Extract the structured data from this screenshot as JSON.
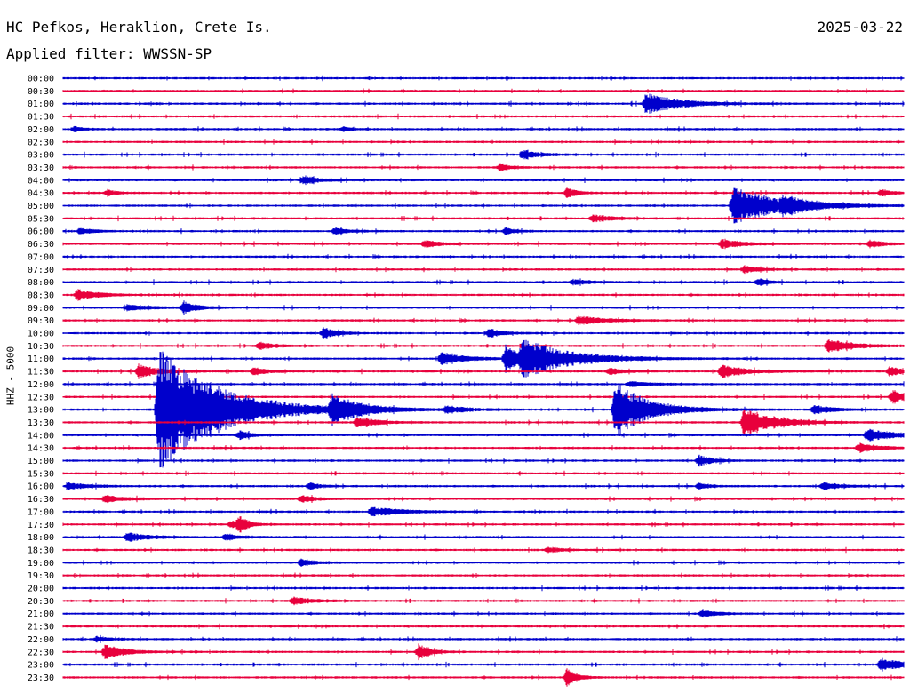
{
  "header": {
    "station": "HC Pefkos, Heraklion, Crete Is.",
    "filter": "Applied filter: WWSSN-SP",
    "date": "2025-03-22"
  },
  "chart_data": {
    "type": "line",
    "title": "HC Pefkos, Heraklion, Crete Is.",
    "subtitle": "Applied filter: WWSSN-SP",
    "ylabel": "HHZ - 5000",
    "row_labels": [
      "00:00",
      "00:30",
      "01:00",
      "01:30",
      "02:00",
      "02:30",
      "03:00",
      "03:30",
      "04:00",
      "04:30",
      "05:00",
      "05:30",
      "06:00",
      "06:30",
      "07:00",
      "07:30",
      "08:00",
      "08:30",
      "09:00",
      "09:30",
      "10:00",
      "10:30",
      "11:00",
      "11:30",
      "12:00",
      "12:30",
      "13:00",
      "13:30",
      "14:00",
      "14:30",
      "15:00",
      "15:30",
      "16:00",
      "16:30",
      "17:00",
      "17:30",
      "18:00",
      "18:30",
      "19:00",
      "19:30",
      "20:00",
      "20:30",
      "21:00",
      "21:30",
      "22:00",
      "22:30",
      "23:00",
      "23:30"
    ],
    "row_colors": [
      "#0000cc",
      "#e8003c"
    ],
    "row_span_minutes": 30,
    "grid": false,
    "events": [
      {
        "row": 2,
        "minute": 20.8,
        "amp": 12,
        "dur": 2.5
      },
      {
        "row": 4,
        "minute": 0.4,
        "amp": 3,
        "dur": 0.6
      },
      {
        "row": 4,
        "minute": 10.0,
        "amp": 3,
        "dur": 0.6
      },
      {
        "row": 6,
        "minute": 16.4,
        "amp": 5,
        "dur": 1.2
      },
      {
        "row": 7,
        "minute": 15.6,
        "amp": 4,
        "dur": 0.8
      },
      {
        "row": 8,
        "minute": 8.6,
        "amp": 5,
        "dur": 1.2
      },
      {
        "row": 9,
        "minute": 1.6,
        "amp": 4,
        "dur": 0.6
      },
      {
        "row": 9,
        "minute": 18.0,
        "amp": 6,
        "dur": 0.7
      },
      {
        "row": 9,
        "minute": 29.2,
        "amp": 4,
        "dur": 0.8
      },
      {
        "row": 10,
        "minute": 23.9,
        "amp": 22,
        "dur": 3.5
      },
      {
        "row": 10,
        "minute": 25.7,
        "amp": 8,
        "dur": 1.5
      },
      {
        "row": 11,
        "minute": 18.9,
        "amp": 4,
        "dur": 1.5
      },
      {
        "row": 12,
        "minute": 0.6,
        "amp": 3,
        "dur": 1.0
      },
      {
        "row": 12,
        "minute": 9.7,
        "amp": 4,
        "dur": 1.0
      },
      {
        "row": 12,
        "minute": 15.8,
        "amp": 4,
        "dur": 0.7
      },
      {
        "row": 13,
        "minute": 12.9,
        "amp": 4,
        "dur": 1.2
      },
      {
        "row": 13,
        "minute": 23.5,
        "amp": 5,
        "dur": 1.5
      },
      {
        "row": 13,
        "minute": 28.8,
        "amp": 4,
        "dur": 1.0
      },
      {
        "row": 15,
        "minute": 24.3,
        "amp": 4,
        "dur": 1.2
      },
      {
        "row": 16,
        "minute": 18.2,
        "amp": 3,
        "dur": 1.2
      },
      {
        "row": 16,
        "minute": 24.8,
        "amp": 4,
        "dur": 0.8
      },
      {
        "row": 17,
        "minute": 0.5,
        "amp": 6,
        "dur": 1.5
      },
      {
        "row": 18,
        "minute": 2.3,
        "amp": 4,
        "dur": 1.5
      },
      {
        "row": 18,
        "minute": 4.3,
        "amp": 7,
        "dur": 1.0
      },
      {
        "row": 19,
        "minute": 18.4,
        "amp": 5,
        "dur": 2.0
      },
      {
        "row": 20,
        "minute": 9.3,
        "amp": 6,
        "dur": 1.0
      },
      {
        "row": 20,
        "minute": 15.2,
        "amp": 5,
        "dur": 1.0
      },
      {
        "row": 21,
        "minute": 7.0,
        "amp": 4,
        "dur": 1.2
      },
      {
        "row": 21,
        "minute": 27.3,
        "amp": 7,
        "dur": 2.0
      },
      {
        "row": 22,
        "minute": 13.5,
        "amp": 7,
        "dur": 1.8
      },
      {
        "row": 22,
        "minute": 15.8,
        "amp": 18,
        "dur": 0.8
      },
      {
        "row": 22,
        "minute": 16.4,
        "amp": 22,
        "dur": 3.5
      },
      {
        "row": 23,
        "minute": 2.7,
        "amp": 9,
        "dur": 1.5
      },
      {
        "row": 23,
        "minute": 6.8,
        "amp": 4,
        "dur": 1.2
      },
      {
        "row": 23,
        "minute": 19.5,
        "amp": 4,
        "dur": 1.0
      },
      {
        "row": 23,
        "minute": 23.5,
        "amp": 7,
        "dur": 2.0
      },
      {
        "row": 23,
        "minute": 29.5,
        "amp": 5,
        "dur": 1.0
      },
      {
        "row": 24,
        "minute": 20.2,
        "amp": 3,
        "dur": 1.5
      },
      {
        "row": 25,
        "minute": 29.6,
        "amp": 8,
        "dur": 1.0
      },
      {
        "row": 26,
        "minute": 3.4,
        "amp": 70,
        "dur": 4.5
      },
      {
        "row": 26,
        "minute": 5.2,
        "amp": 5,
        "dur": 1.0
      },
      {
        "row": 26,
        "minute": 9.6,
        "amp": 16,
        "dur": 2.0
      },
      {
        "row": 26,
        "minute": 13.7,
        "amp": 4,
        "dur": 1.5
      },
      {
        "row": 26,
        "minute": 19.7,
        "amp": 32,
        "dur": 2.5
      },
      {
        "row": 26,
        "minute": 26.8,
        "amp": 5,
        "dur": 1.5
      },
      {
        "row": 27,
        "minute": 10.5,
        "amp": 6,
        "dur": 1.5
      },
      {
        "row": 27,
        "minute": 24.3,
        "amp": 18,
        "dur": 2.2
      },
      {
        "row": 28,
        "minute": 6.3,
        "amp": 5,
        "dur": 0.8
      },
      {
        "row": 28,
        "minute": 28.7,
        "amp": 7,
        "dur": 2.0
      },
      {
        "row": 29,
        "minute": 28.4,
        "amp": 5,
        "dur": 1.5
      },
      {
        "row": 30,
        "minute": 22.7,
        "amp": 6,
        "dur": 1.0
      },
      {
        "row": 32,
        "minute": 0.2,
        "amp": 4,
        "dur": 1.5
      },
      {
        "row": 32,
        "minute": 8.8,
        "amp": 4,
        "dur": 0.8
      },
      {
        "row": 32,
        "minute": 22.7,
        "amp": 4,
        "dur": 0.8
      },
      {
        "row": 32,
        "minute": 27.1,
        "amp": 5,
        "dur": 1.2
      },
      {
        "row": 33,
        "minute": 1.5,
        "amp": 4,
        "dur": 1.5
      },
      {
        "row": 33,
        "minute": 8.5,
        "amp": 4,
        "dur": 1.0
      },
      {
        "row": 34,
        "minute": 11.0,
        "amp": 5,
        "dur": 2.5
      },
      {
        "row": 35,
        "minute": 6.0,
        "amp": 4,
        "dur": 1.0
      },
      {
        "row": 35,
        "minute": 6.3,
        "amp": 8,
        "dur": 0.6
      },
      {
        "row": 36,
        "minute": 2.3,
        "amp": 5,
        "dur": 1.5
      },
      {
        "row": 36,
        "minute": 5.8,
        "amp": 3,
        "dur": 1.2
      },
      {
        "row": 37,
        "minute": 17.3,
        "amp": 3,
        "dur": 1.2
      },
      {
        "row": 38,
        "minute": 8.5,
        "amp": 4,
        "dur": 1.0
      },
      {
        "row": 41,
        "minute": 8.2,
        "amp": 4,
        "dur": 1.5
      },
      {
        "row": 42,
        "minute": 22.8,
        "amp": 4,
        "dur": 1.2
      },
      {
        "row": 44,
        "minute": 1.2,
        "amp": 3,
        "dur": 1.0
      },
      {
        "row": 45,
        "minute": 1.5,
        "amp": 8,
        "dur": 1.5
      },
      {
        "row": 45,
        "minute": 12.7,
        "amp": 10,
        "dur": 0.8
      },
      {
        "row": 46,
        "minute": 29.2,
        "amp": 7,
        "dur": 2.0
      },
      {
        "row": 47,
        "minute": 18.0,
        "amp": 12,
        "dur": 0.7
      }
    ]
  }
}
